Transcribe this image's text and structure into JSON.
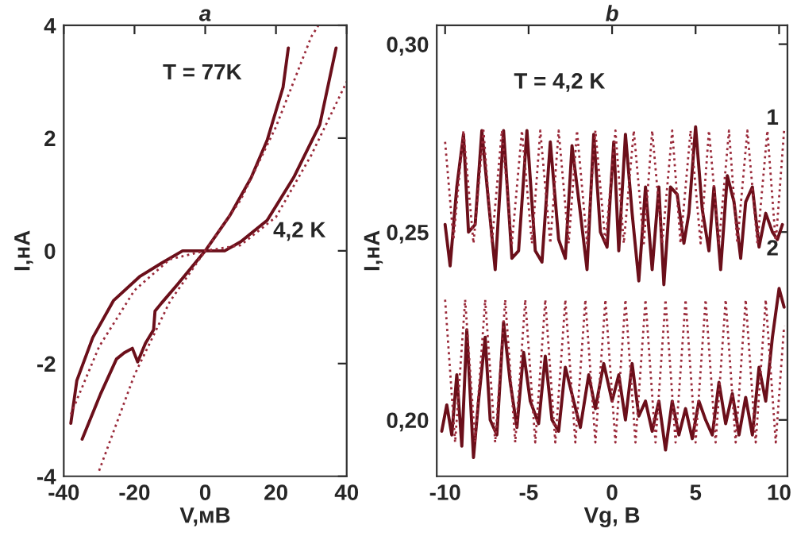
{
  "chart_data": [
    {
      "type": "line",
      "title": "a",
      "xlabel": "V,мВ",
      "ylabel": "I,нА",
      "xlim": [
        -40,
        40
      ],
      "ylim": [
        -4,
        4
      ],
      "xticks": [
        -40,
        -20,
        0,
        20,
        40
      ],
      "yticks": [
        -4,
        -2,
        0,
        2,
        4
      ],
      "grid": false,
      "legend": false,
      "annotations": [
        "T = 77K",
        "4,2 K"
      ],
      "series": [
        {
          "color": "#6b0f1a",
          "line_style": "solid",
          "x": [
            -34.8,
            -29.6,
            -25.1,
            -22.9,
            -20.6,
            -19.1,
            -16.9,
            -14.6,
            -14.2,
            -12.4,
            -7.9,
            0,
            7,
            13,
            17.5,
            22,
            23.5
          ],
          "values": [
            -3.34,
            -2.54,
            -1.92,
            -1.81,
            -1.73,
            -1.97,
            -1.64,
            -1.4,
            -1.07,
            -0.93,
            -0.6,
            0,
            0.63,
            1.3,
            1.96,
            2.9,
            3.6
          ]
        },
        {
          "color": "#9a2a3a",
          "line_style": "dotted",
          "x": [
            -30,
            -20,
            -10,
            0,
            10,
            20,
            30,
            32
          ],
          "values": [
            -3.9,
            -2.2,
            -0.9,
            0,
            0.9,
            2.2,
            3.8,
            4.0
          ]
        },
        {
          "color": "#6b0f1a",
          "line_style": "solid",
          "x": [
            -38,
            -36.3,
            -31.8,
            -25.9,
            -18.4,
            -12.4,
            -6.4,
            5.5,
            10,
            17.5,
            25,
            32.4,
            37
          ],
          "values": [
            -3.06,
            -2.3,
            -1.54,
            -0.88,
            -0.45,
            -0.22,
            0,
            0,
            0.16,
            0.54,
            1.3,
            2.24,
            3.6
          ]
        },
        {
          "color": "#9a2a3a",
          "line_style": "dotted",
          "x": [
            -38,
            -30,
            -20,
            -10,
            0,
            10,
            20,
            30,
            40
          ],
          "values": [
            -2.9,
            -1.7,
            -0.7,
            -0.15,
            0,
            0.1,
            0.6,
            1.7,
            3.0
          ]
        }
      ]
    },
    {
      "type": "line",
      "title": "b",
      "xlabel": "Vg, В",
      "ylabel": "I,нА",
      "xlim": [
        -10.5,
        10.5
      ],
      "ylim": [
        0.185,
        0.305
      ],
      "xticks": [
        -10,
        -5,
        0,
        5,
        10
      ],
      "yticks": [
        {
          "value": 0.2,
          "label": "0,20"
        },
        {
          "value": 0.25,
          "label": "0,25"
        },
        {
          "value": 0.3,
          "label": "0,30"
        }
      ],
      "grid": false,
      "legend": false,
      "annotations": [
        "T = 4,2 K",
        "1",
        "2"
      ],
      "series": [
        {
          "color": "#6b0f1a",
          "line_style": "solid",
          "x": [
            -10.0,
            -9.7,
            -9.3,
            -8.9,
            -8.6,
            -8.2,
            -7.8,
            -7.4,
            -7.0,
            -6.5,
            -6.0,
            -5.6,
            -5.1,
            -4.6,
            -4.2,
            -3.7,
            -3.2,
            -2.8,
            -2.4,
            -1.9,
            -1.5,
            -1.1,
            -0.7,
            -0.3,
            0.1,
            0.4,
            0.8,
            1.2,
            1.6,
            2.0,
            2.4,
            2.8,
            3.1,
            3.5,
            3.9,
            4.3,
            4.6,
            5.0,
            5.4,
            5.8,
            6.1,
            6.5,
            6.9,
            7.3,
            7.7,
            8.0,
            8.4,
            8.8,
            9.2,
            9.6,
            9.9,
            10.2
          ],
          "values": [
            0.252,
            0.241,
            0.262,
            0.276,
            0.25,
            0.252,
            0.277,
            0.258,
            0.24,
            0.277,
            0.243,
            0.245,
            0.277,
            0.245,
            0.242,
            0.274,
            0.248,
            0.243,
            0.273,
            0.255,
            0.24,
            0.276,
            0.25,
            0.246,
            0.274,
            0.245,
            0.276,
            0.255,
            0.237,
            0.262,
            0.24,
            0.262,
            0.236,
            0.262,
            0.26,
            0.247,
            0.255,
            0.278,
            0.256,
            0.245,
            0.262,
            0.24,
            0.265,
            0.258,
            0.243,
            0.258,
            0.262,
            0.246,
            0.255,
            0.25,
            0.248,
            0.252
          ]
        },
        {
          "color": "#9a2a3a",
          "line_style": "dotted",
          "x": [
            -10.0,
            -9.5,
            -8.9,
            -8.3,
            -7.7,
            -7.2,
            -6.6,
            -6.0,
            -5.4,
            -4.8,
            -4.3,
            -3.7,
            -3.2,
            -2.6,
            -2.1,
            -1.5,
            -1.0,
            -0.4,
            0.2,
            0.7,
            1.3,
            1.9,
            2.4,
            3.0,
            3.6,
            4.1,
            4.7,
            5.3,
            5.8,
            6.4,
            7.0,
            7.5,
            8.1,
            8.7,
            9.3,
            9.8,
            10.3
          ],
          "values": [
            0.274,
            0.248,
            0.277,
            0.247,
            0.277,
            0.247,
            0.277,
            0.247,
            0.277,
            0.247,
            0.277,
            0.247,
            0.277,
            0.247,
            0.277,
            0.247,
            0.277,
            0.247,
            0.277,
            0.247,
            0.277,
            0.247,
            0.277,
            0.247,
            0.277,
            0.247,
            0.277,
            0.247,
            0.277,
            0.247,
            0.277,
            0.247,
            0.277,
            0.247,
            0.277,
            0.247,
            0.277
          ]
        },
        {
          "color": "#6b0f1a",
          "line_style": "solid",
          "x": [
            -10.2,
            -9.9,
            -9.6,
            -9.3,
            -9.0,
            -8.7,
            -8.3,
            -8.0,
            -7.6,
            -7.3,
            -6.9,
            -6.5,
            -6.1,
            -5.7,
            -5.3,
            -4.9,
            -4.4,
            -4.0,
            -3.6,
            -3.2,
            -2.8,
            -2.3,
            -1.9,
            -1.4,
            -1.0,
            -0.5,
            0.0,
            0.4,
            0.8,
            1.2,
            1.6,
            2.0,
            2.4,
            2.8,
            3.2,
            3.6,
            4.0,
            4.4,
            4.8,
            5.2,
            5.6,
            6.0,
            6.4,
            6.8,
            7.2,
            7.6,
            8.0,
            8.4,
            8.8,
            9.2,
            9.6,
            10.0,
            10.3
          ],
          "values": [
            0.197,
            0.204,
            0.196,
            0.212,
            0.193,
            0.224,
            0.19,
            0.205,
            0.222,
            0.2,
            0.196,
            0.226,
            0.21,
            0.198,
            0.218,
            0.205,
            0.199,
            0.217,
            0.2,
            0.197,
            0.214,
            0.205,
            0.198,
            0.212,
            0.203,
            0.215,
            0.205,
            0.212,
            0.2,
            0.215,
            0.201,
            0.205,
            0.197,
            0.205,
            0.192,
            0.205,
            0.196,
            0.203,
            0.195,
            0.205,
            0.2,
            0.196,
            0.21,
            0.199,
            0.207,
            0.196,
            0.206,
            0.196,
            0.214,
            0.205,
            0.222,
            0.235,
            0.23
          ]
        },
        {
          "color": "#9a2a3a",
          "line_style": "dotted",
          "x": [
            -10.0,
            -9.4,
            -8.8,
            -8.2,
            -7.6,
            -7.0,
            -6.4,
            -5.8,
            -5.2,
            -4.6,
            -4.0,
            -3.4,
            -2.8,
            -2.2,
            -1.6,
            -1.0,
            -0.4,
            0.2,
            0.8,
            1.4,
            2.0,
            2.6,
            3.2,
            3.8,
            4.4,
            5.0,
            5.6,
            6.2,
            6.8,
            7.4,
            8.0,
            8.6,
            9.2,
            9.8,
            10.3
          ],
          "values": [
            0.232,
            0.194,
            0.232,
            0.194,
            0.232,
            0.194,
            0.232,
            0.194,
            0.232,
            0.194,
            0.232,
            0.194,
            0.232,
            0.194,
            0.232,
            0.194,
            0.232,
            0.194,
            0.232,
            0.194,
            0.232,
            0.194,
            0.232,
            0.194,
            0.232,
            0.194,
            0.232,
            0.194,
            0.232,
            0.194,
            0.232,
            0.194,
            0.232,
            0.194,
            0.225
          ]
        }
      ]
    }
  ]
}
